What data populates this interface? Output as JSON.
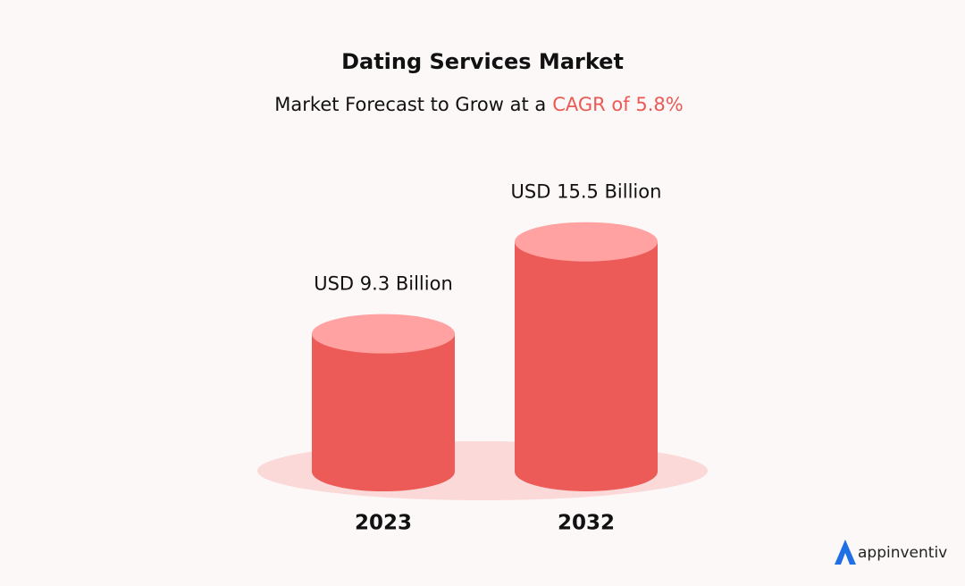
{
  "chart_data": {
    "type": "bar",
    "title": "Dating Services Market",
    "subtitle": "Market Forecast to Grow at a",
    "subtitle_highlight": "CAGR of 5.8%",
    "categories": [
      "2023",
      "2032"
    ],
    "values": [
      9.3,
      15.5
    ],
    "value_labels": [
      "USD 9.3 Billion",
      "USD 15.5 Billion"
    ],
    "color": "#ec5b57",
    "brand": "appinventiv"
  }
}
